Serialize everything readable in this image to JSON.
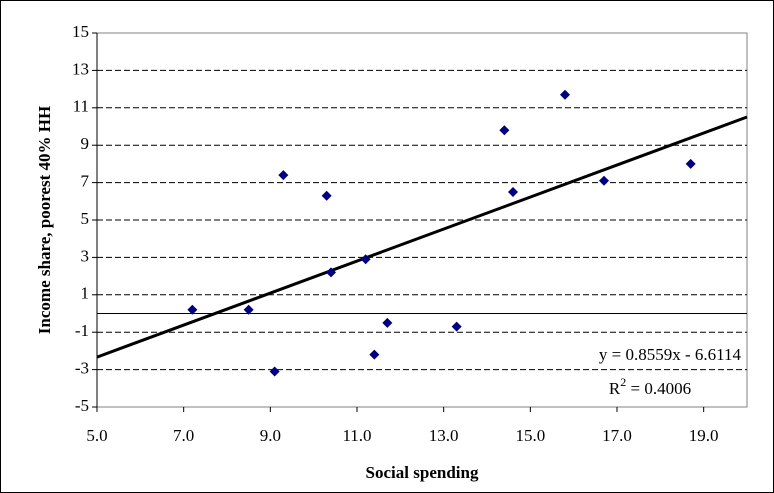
{
  "chart_data": {
    "type": "scatter",
    "x_label": "Social spending",
    "y_label": "Income share, poorest 40% HH",
    "color": "#000080",
    "xlim": [
      5,
      20
    ],
    "xticks": [
      {
        "value": 5,
        "label": "5.0"
      },
      {
        "value": 7,
        "label": "7.0"
      },
      {
        "value": 9,
        "label": "9.0"
      },
      {
        "value": 11,
        "label": "11.0"
      },
      {
        "value": 13,
        "label": "13.0"
      },
      {
        "value": 15,
        "label": "15.0"
      },
      {
        "value": 17,
        "label": "17.0"
      },
      {
        "value": 19,
        "label": "19.0"
      }
    ],
    "ylim": [
      -5,
      15
    ],
    "yticks": [
      -5,
      -3,
      -1,
      1,
      3,
      5,
      7,
      9,
      11,
      13,
      15
    ],
    "grid": true,
    "x": [
      7.2,
      8.5,
      9.1,
      9.3,
      10.3,
      10.4,
      11.2,
      11.4,
      11.7,
      13.3,
      14.4,
      14.6,
      15.8,
      16.7,
      18.7
    ],
    "values": [
      0.2,
      0.2,
      -3.1,
      7.4,
      6.3,
      2.2,
      2.9,
      -2.2,
      -0.5,
      -0.7,
      9.8,
      6.5,
      11.7,
      7.1,
      8.0
    ],
    "trendline": {
      "slope": 0.8559,
      "intercept": -6.6114,
      "color": "#000000",
      "equation": "y = 0.8559x - 6.6114",
      "r_squared": {
        "base": "R",
        "sup": "2",
        "rest": " = 0.4006"
      }
    }
  }
}
